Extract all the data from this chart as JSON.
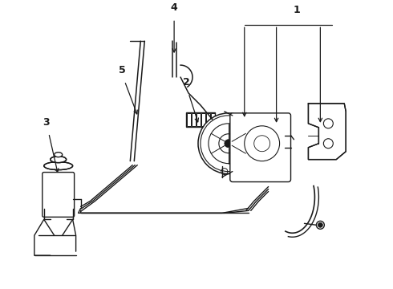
{
  "background": "#ffffff",
  "line_color": "#1a1a1a",
  "figsize": [
    4.9,
    3.6
  ],
  "dpi": 100
}
